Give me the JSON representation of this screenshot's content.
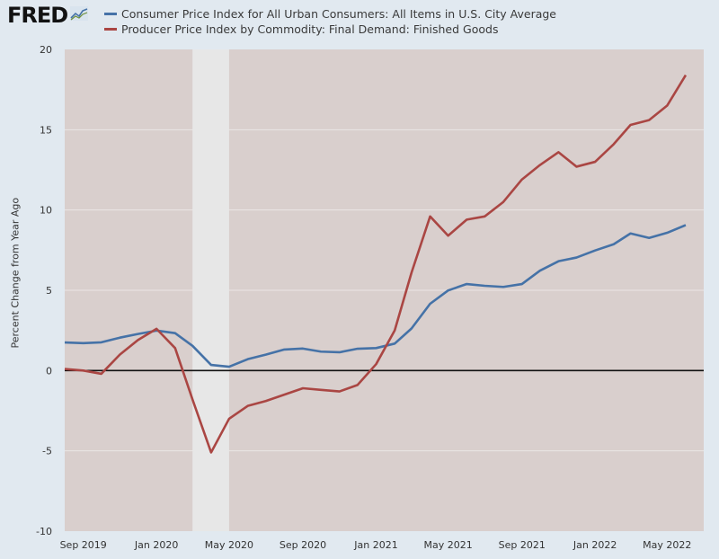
{
  "header": {
    "logo_text": "FRED"
  },
  "chart_data": {
    "type": "line",
    "xlabel": "",
    "ylabel": "Percent Change from Year Ago",
    "ylim": [
      -10,
      20
    ],
    "yticks": [
      -10,
      -5,
      0,
      5,
      10,
      15,
      20
    ],
    "xlim": [
      "2019-08-01",
      "2022-07-01"
    ],
    "xticks": [
      {
        "date": "2019-09-01",
        "label": "Sep 2019"
      },
      {
        "date": "2020-01-01",
        "label": "Jan 2020"
      },
      {
        "date": "2020-05-01",
        "label": "May 2020"
      },
      {
        "date": "2020-09-01",
        "label": "Sep 2020"
      },
      {
        "date": "2021-01-01",
        "label": "Jan 2021"
      },
      {
        "date": "2021-05-01",
        "label": "May 2021"
      },
      {
        "date": "2021-09-01",
        "label": "Sep 2021"
      },
      {
        "date": "2022-01-01",
        "label": "Jan 2022"
      },
      {
        "date": "2022-05-01",
        "label": "May 2022"
      }
    ],
    "recession": {
      "start": "2020-03-01",
      "end": "2020-05-01"
    },
    "zero_line": true,
    "legend_position": "top",
    "series": [
      {
        "name": "Consumer Price Index for All Urban Consumers: All Items in U.S. City Average",
        "color": "#4572a7",
        "x": [
          "2019-08-01",
          "2019-09-01",
          "2019-10-01",
          "2019-11-01",
          "2019-12-01",
          "2020-01-01",
          "2020-02-01",
          "2020-03-01",
          "2020-04-01",
          "2020-05-01",
          "2020-06-01",
          "2020-07-01",
          "2020-08-01",
          "2020-09-01",
          "2020-10-01",
          "2020-11-01",
          "2020-12-01",
          "2021-01-01",
          "2021-02-01",
          "2021-03-01",
          "2021-04-01",
          "2021-05-01",
          "2021-06-01",
          "2021-07-01",
          "2021-08-01",
          "2021-09-01",
          "2021-10-01",
          "2021-11-01",
          "2021-12-01",
          "2022-01-01",
          "2022-02-01",
          "2022-03-01",
          "2022-04-01",
          "2022-05-01",
          "2022-06-01"
        ],
        "values": [
          1.75,
          1.71,
          1.76,
          2.05,
          2.28,
          2.49,
          2.33,
          1.54,
          0.35,
          0.24,
          0.71,
          0.99,
          1.31,
          1.37,
          1.18,
          1.14,
          1.36,
          1.4,
          1.68,
          2.62,
          4.16,
          4.99,
          5.39,
          5.28,
          5.21,
          5.39,
          6.22,
          6.81,
          7.04,
          7.48,
          7.87,
          8.54,
          8.26,
          8.58,
          9.06
        ]
      },
      {
        "name": "Producer Price Index by Commodity: Final Demand: Finished Goods",
        "color": "#aa4643",
        "x": [
          "2019-08-01",
          "2019-09-01",
          "2019-10-01",
          "2019-11-01",
          "2019-12-01",
          "2020-01-01",
          "2020-02-01",
          "2020-03-01",
          "2020-04-01",
          "2020-05-01",
          "2020-06-01",
          "2020-07-01",
          "2020-08-01",
          "2020-09-01",
          "2020-10-01",
          "2020-11-01",
          "2020-12-01",
          "2021-01-01",
          "2021-02-01",
          "2021-03-01",
          "2021-04-01",
          "2021-05-01",
          "2021-06-01",
          "2021-07-01",
          "2021-08-01",
          "2021-09-01",
          "2021-10-01",
          "2021-11-01",
          "2021-12-01",
          "2022-01-01",
          "2022-02-01",
          "2022-03-01",
          "2022-04-01",
          "2022-05-01",
          "2022-06-01"
        ],
        "values": [
          0.1,
          0.0,
          -0.2,
          1.0,
          1.9,
          2.6,
          1.4,
          -1.8,
          -5.1,
          -3.0,
          -2.2,
          -1.9,
          -1.5,
          -1.1,
          -1.2,
          -1.3,
          -0.9,
          0.4,
          2.5,
          6.1,
          9.6,
          8.4,
          9.4,
          9.6,
          10.5,
          11.9,
          12.8,
          13.6,
          12.7,
          13.0,
          14.1,
          15.3,
          15.6,
          16.5,
          18.4
        ]
      }
    ]
  }
}
